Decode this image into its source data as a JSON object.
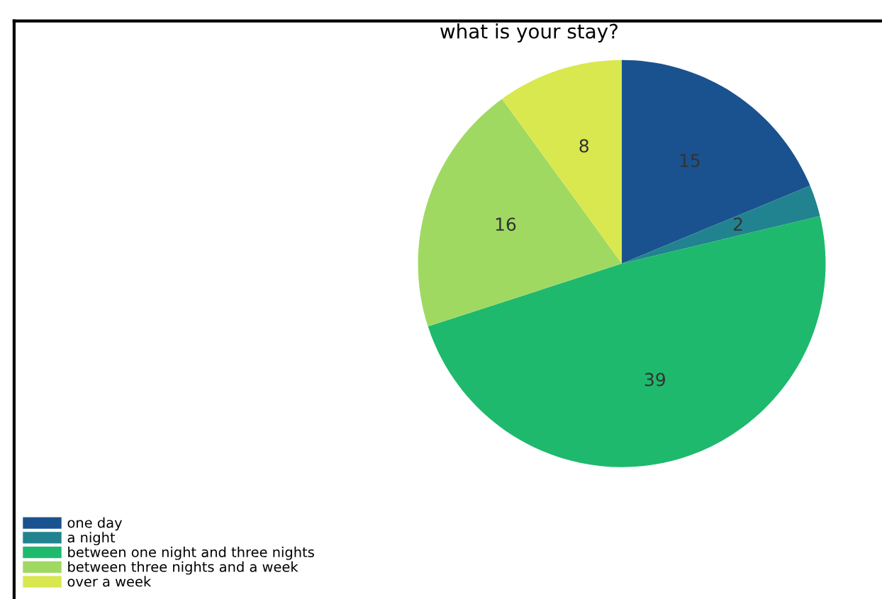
{
  "chart_data": {
    "type": "pie",
    "title": "what is your stay?",
    "categories": [
      "one day",
      "a night",
      "between one night and three nights",
      "between three nights and a week",
      "over a week"
    ],
    "values": [
      15,
      2,
      39,
      16,
      8
    ],
    "colors": [
      "#1a528f",
      "#21838f",
      "#1eb96d",
      "#9fd962",
      "#d9e84f"
    ],
    "data_labels": true,
    "legend": "bottom left"
  }
}
